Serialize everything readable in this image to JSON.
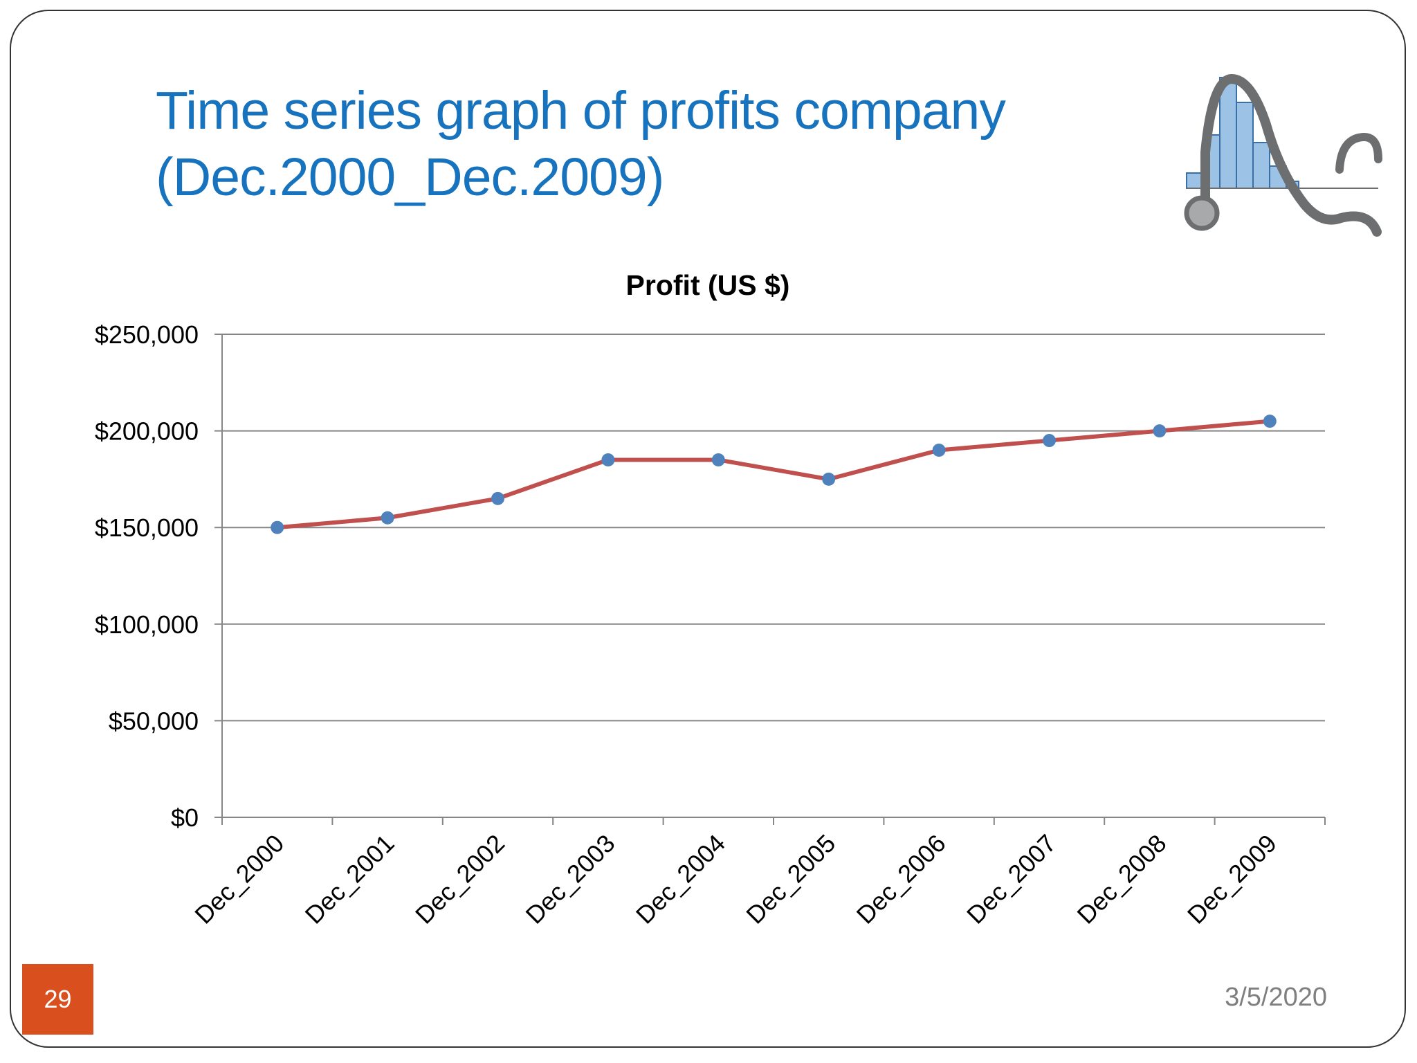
{
  "slide": {
    "title_line1": "Time series graph of profits company",
    "title_line2": "(Dec.2000_Dec.2009)",
    "page_number": "29",
    "date": "3/5/2020"
  },
  "colors": {
    "title": "#1773bd",
    "line": "#c0504d",
    "marker": "#4f81bd",
    "page_badge": "#d9501e",
    "date": "#7f7f7f",
    "logo_bars": "#9cc3e6",
    "logo_stethoscope": "#6d6e70"
  },
  "icons": {
    "logo": "histogram-stethoscope-logo"
  },
  "chart_data": {
    "type": "line",
    "title": "Profit (US $)",
    "xlabel": "",
    "ylabel": "",
    "categories": [
      "Dec_2000",
      "Dec_2001",
      "Dec_2002",
      "Dec_2003",
      "Dec_2004",
      "Dec_2005",
      "Dec_2006",
      "Dec_2007",
      "Dec_2008",
      "Dec_2009"
    ],
    "series": [
      {
        "values": [
          150000,
          155000,
          165000,
          185000,
          185000,
          175000,
          190000,
          195000,
          200000,
          205000
        ]
      }
    ],
    "ylim": [
      0,
      250000
    ],
    "y_ticks": [
      0,
      50000,
      100000,
      150000,
      200000,
      250000
    ],
    "y_tick_labels": [
      "$0",
      "$50,000",
      "$100,000",
      "$150,000",
      "$200,000",
      "$250,000"
    ],
    "grid": true,
    "legend": "none"
  }
}
